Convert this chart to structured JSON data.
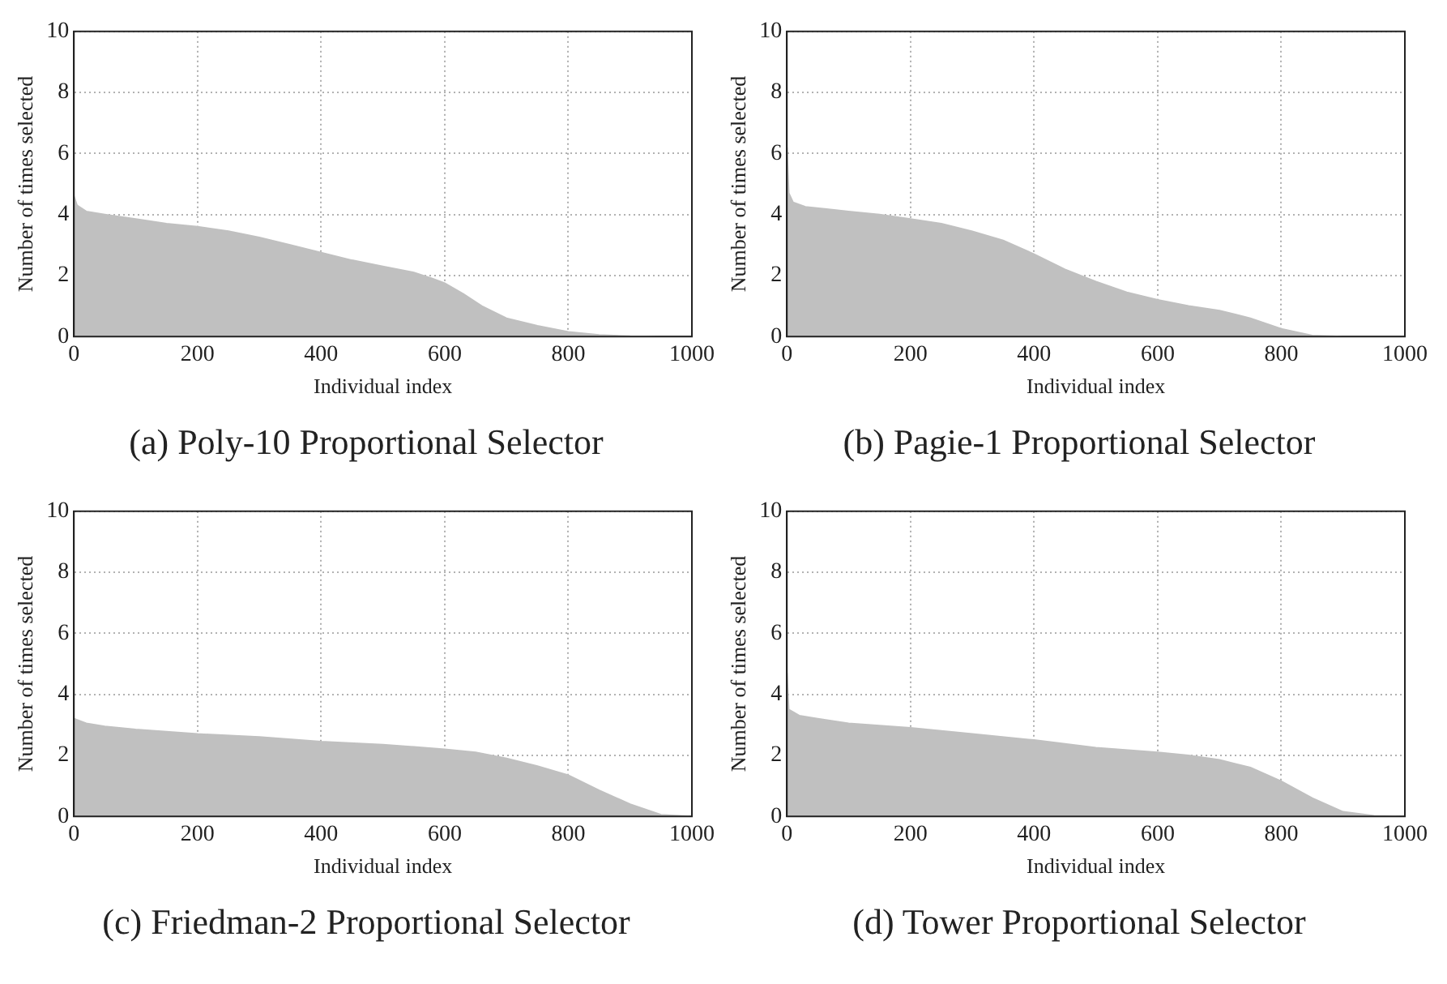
{
  "chart_data": [
    {
      "type": "area",
      "title": "(a) Poly-10 Proportional Selector",
      "xlabel": "Individual index",
      "ylabel": "Number of times selected",
      "xlim": [
        0,
        1000
      ],
      "xticks": [
        0,
        200,
        400,
        600,
        800,
        1000
      ],
      "ylim": [
        0,
        10
      ],
      "yticks": [
        0,
        2,
        4,
        6,
        8,
        10
      ],
      "grid": true,
      "series": [
        {
          "color": "#c0c0c0",
          "x": [
            0,
            5,
            20,
            50,
            100,
            150,
            200,
            250,
            300,
            350,
            400,
            450,
            500,
            550,
            580,
            600,
            630,
            660,
            700,
            750,
            800,
            850,
            900,
            950,
            1000
          ],
          "values": [
            4.6,
            4.3,
            4.1,
            4.0,
            3.85,
            3.7,
            3.6,
            3.45,
            3.25,
            3.0,
            2.75,
            2.5,
            2.3,
            2.1,
            1.9,
            1.75,
            1.4,
            1.0,
            0.6,
            0.35,
            0.15,
            0.05,
            0.01,
            0,
            0
          ]
        }
      ]
    },
    {
      "type": "area",
      "title": "(b) Pagie-1 Proportional Selector",
      "xlabel": "Individual index",
      "ylabel": "Number of times selected",
      "xlim": [
        0,
        1000
      ],
      "xticks": [
        0,
        200,
        400,
        600,
        800,
        1000
      ],
      "ylim": [
        0,
        10
      ],
      "yticks": [
        0,
        2,
        4,
        6,
        8,
        10
      ],
      "grid": true,
      "series": [
        {
          "color": "#c0c0c0",
          "x": [
            0,
            3,
            10,
            30,
            100,
            150,
            200,
            250,
            300,
            350,
            400,
            450,
            500,
            550,
            600,
            650,
            700,
            750,
            800,
            850,
            900,
            1000
          ],
          "values": [
            6.2,
            4.7,
            4.4,
            4.25,
            4.1,
            4.0,
            3.85,
            3.7,
            3.45,
            3.15,
            2.7,
            2.2,
            1.8,
            1.45,
            1.2,
            1.0,
            0.85,
            0.6,
            0.25,
            0.03,
            0,
            0
          ]
        }
      ]
    },
    {
      "type": "area",
      "title": "(c) Friedman-2 Proportional Selector",
      "xlabel": "Individual index",
      "ylabel": "Number of times selected",
      "xlim": [
        0,
        1000
      ],
      "xticks": [
        0,
        200,
        400,
        600,
        800,
        1000
      ],
      "ylim": [
        0,
        10
      ],
      "yticks": [
        0,
        2,
        4,
        6,
        8,
        10
      ],
      "grid": true,
      "series": [
        {
          "color": "#c0c0c0",
          "x": [
            0,
            20,
            50,
            100,
            200,
            300,
            400,
            500,
            600,
            650,
            700,
            750,
            800,
            850,
            900,
            950,
            1000
          ],
          "values": [
            3.2,
            3.05,
            2.95,
            2.85,
            2.7,
            2.6,
            2.45,
            2.35,
            2.2,
            2.1,
            1.9,
            1.65,
            1.35,
            0.85,
            0.4,
            0.05,
            0
          ]
        }
      ]
    },
    {
      "type": "area",
      "title": "(d) Tower Proportional Selector",
      "xlabel": "Individual index",
      "ylabel": "Number of times selected",
      "xlim": [
        0,
        1000
      ],
      "xticks": [
        0,
        200,
        400,
        600,
        800,
        1000
      ],
      "ylim": [
        0,
        10
      ],
      "yticks": [
        0,
        2,
        4,
        6,
        8,
        10
      ],
      "grid": true,
      "series": [
        {
          "color": "#c0c0c0",
          "x": [
            0,
            3,
            20,
            50,
            100,
            200,
            300,
            400,
            500,
            600,
            650,
            700,
            750,
            800,
            850,
            900,
            950,
            1000
          ],
          "values": [
            4.7,
            3.5,
            3.3,
            3.2,
            3.05,
            2.9,
            2.7,
            2.5,
            2.25,
            2.1,
            2.0,
            1.85,
            1.6,
            1.15,
            0.6,
            0.15,
            0.02,
            0
          ]
        }
      ]
    }
  ]
}
